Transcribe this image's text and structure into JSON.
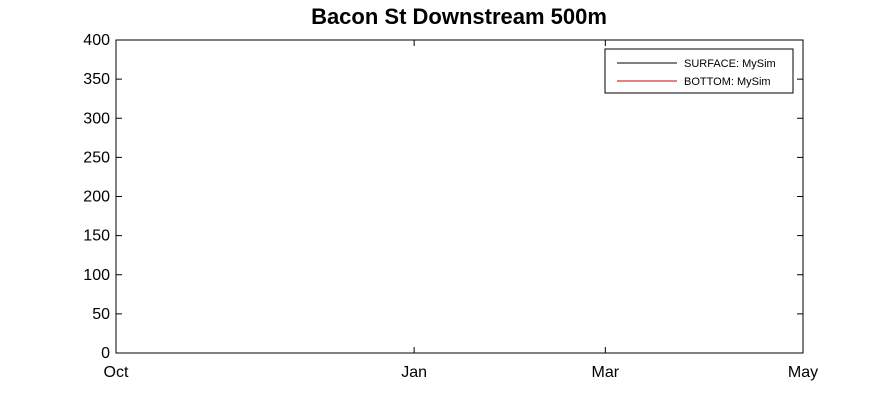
{
  "chart_data": {
    "type": "line",
    "title": "Bacon St Downstream 500m",
    "xlabel": "",
    "ylabel": "",
    "ylim": [
      0,
      400
    ],
    "yticks": [
      0,
      50,
      100,
      150,
      200,
      250,
      300,
      350,
      400
    ],
    "xlim": [
      "Oct",
      "May"
    ],
    "xticks": [
      "Oct",
      "Jan",
      "Mar",
      "May"
    ],
    "grid": false,
    "legend_position": "top-right",
    "series": [
      {
        "name": "SURFACE: MySim",
        "color": "#000000",
        "x": [],
        "y": []
      },
      {
        "name": "BOTTOM: MySim",
        "color": "#cc0000",
        "x": [],
        "y": []
      }
    ]
  }
}
